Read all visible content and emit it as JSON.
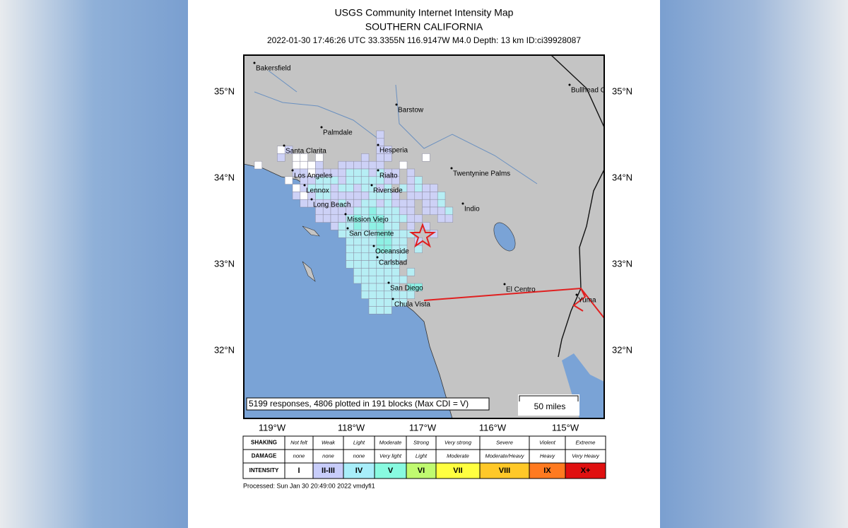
{
  "header": {
    "title": "USGS Community Internet Intensity Map",
    "subtitle": "SOUTHERN CALIFORNIA",
    "event_line": "2022-01-30 17:46:26 UTC 33.3355N 116.9147W M4.0 Depth: 13 km ID:ci39928087"
  },
  "map": {
    "lat_labels_left": [
      "35°N",
      "34°N",
      "33°N",
      "32°N"
    ],
    "lat_labels_right": [
      "35°N",
      "34°N",
      "33°N",
      "32°N"
    ],
    "lon_labels": [
      "119°W",
      "118°W",
      "117°W",
      "116°W",
      "115°W"
    ],
    "cities": [
      "Bakersfield",
      "Barstow",
      "Bullhead C",
      "Palmdale",
      "Santa Clarita",
      "Hesperia",
      "Los Angeles",
      "Rialto",
      "Twentynine Palms",
      "Lennox",
      "Riverside",
      "Long Beach",
      "Indio",
      "Mission Viejo",
      "San Clemente",
      "Oceanside",
      "Carlsbad",
      "El Centro",
      "San Diego",
      "Yuma",
      "Chula Vista"
    ],
    "note": "5199 responses, 4806 plotted in 191 blocks (Max CDI = V)",
    "scale_label": "50 miles"
  },
  "legend": {
    "rows": [
      {
        "label": "SHAKING",
        "cells": [
          "Not felt",
          "Weak",
          "Light",
          "Moderate",
          "Strong",
          "Very strong",
          "Severe",
          "Violent",
          "Extreme"
        ]
      },
      {
        "label": "DAMAGE",
        "cells": [
          "none",
          "none",
          "none",
          "Very light",
          "Light",
          "Moderate",
          "Moderate/Heavy",
          "Heavy",
          "Very Heavy"
        ]
      },
      {
        "label": "INTENSITY",
        "cells": [
          "I",
          "II-III",
          "IV",
          "V",
          "VI",
          "VII",
          "VIII",
          "IX",
          "X+"
        ]
      }
    ],
    "colors": [
      "#ffffff",
      "#c8cdfa",
      "#a8eefa",
      "#88fae0",
      "#c0fa70",
      "#ffff40",
      "#ffc828",
      "#ff7a20",
      "#e01010"
    ]
  },
  "footer": {
    "processed": "Processed: Sun Jan 30 20:49:00 2022 vmdyfi1"
  }
}
